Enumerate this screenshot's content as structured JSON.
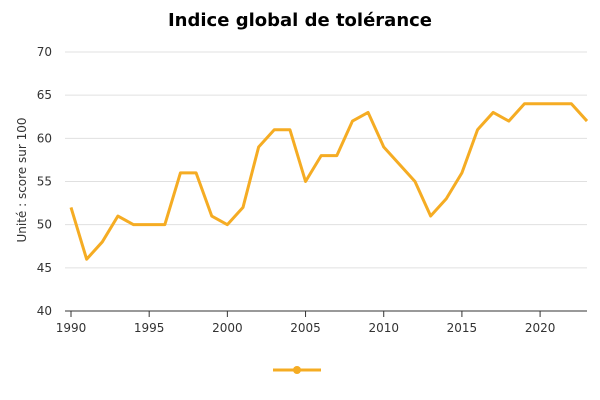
{
  "chart_data": {
    "type": "line",
    "title": "Indice global de tolérance",
    "xlabel": "",
    "ylabel": "Unité : score sur 100",
    "xlim": [
      1990,
      2023
    ],
    "ylim": [
      40,
      70
    ],
    "x_ticks": [
      "1990",
      "1995",
      "2000",
      "2005",
      "2010",
      "2015",
      "2020"
    ],
    "y_ticks": [
      "40",
      "45",
      "50",
      "55",
      "60",
      "65",
      "70"
    ],
    "grid": "horizontal",
    "legend": "bottom-center",
    "series": [
      {
        "color": "#f5ac23",
        "x": [
          1990,
          1991,
          1992,
          1993,
          1994,
          1995,
          1996,
          1997,
          1998,
          1999,
          2000,
          2001,
          2002,
          2003,
          2004,
          2005,
          2006,
          2007,
          2008,
          2009,
          2010,
          2011,
          2012,
          2013,
          2014,
          2015,
          2016,
          2017,
          2018,
          2019,
          2020,
          2021,
          2022,
          2023
        ],
        "values": [
          52,
          46,
          48,
          51,
          50,
          50,
          50,
          56,
          56,
          51,
          50,
          52,
          59,
          61,
          61,
          55,
          58,
          58,
          62,
          63,
          59,
          57,
          55,
          51,
          53,
          56,
          61,
          63,
          62,
          64,
          64,
          64,
          64,
          62
        ]
      }
    ]
  }
}
